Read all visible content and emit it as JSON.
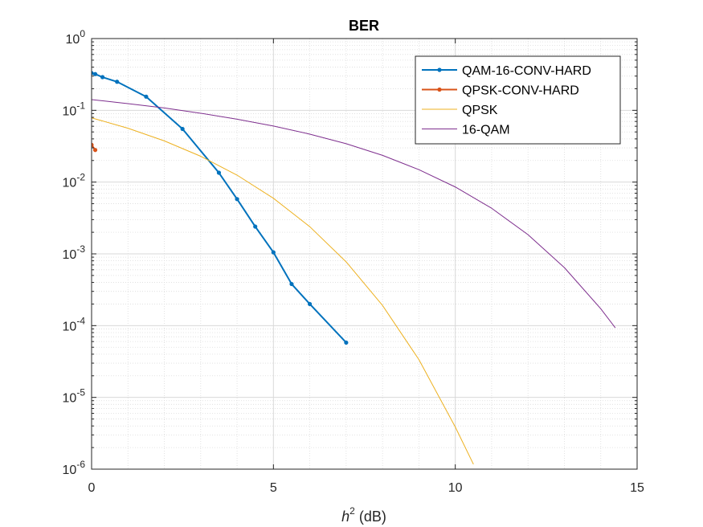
{
  "chart_data": {
    "type": "line",
    "title": "BER",
    "xlabel": {
      "base": "h",
      "sup": "2",
      "rest": " (dB)"
    },
    "ylabel": "",
    "xlim": [
      0,
      15
    ],
    "ylim": [
      1e-06,
      1
    ],
    "yscale": "log",
    "grid": true,
    "minor_grid": true,
    "legend_position": "top-right",
    "x_ticks": [
      "0",
      "5",
      "10",
      "15"
    ],
    "y_ticks": [
      {
        "base": "10",
        "exp": "0"
      },
      {
        "base": "10",
        "exp": "-1"
      },
      {
        "base": "10",
        "exp": "-2"
      },
      {
        "base": "10",
        "exp": "-3"
      },
      {
        "base": "10",
        "exp": "-4"
      },
      {
        "base": "10",
        "exp": "-5"
      },
      {
        "base": "10",
        "exp": "-6"
      }
    ],
    "series": [
      {
        "name": "QAM-16-CONV-HARD",
        "color": "#0072BD",
        "markers": true,
        "x": [
          0,
          0.1,
          0.3,
          0.7,
          1.5,
          2.5,
          3.5,
          4,
          4.5,
          5,
          5.5,
          6,
          7
        ],
        "y": [
          0.33,
          0.32,
          0.29,
          0.25,
          0.155,
          0.055,
          0.0135,
          0.0058,
          0.0024,
          0.00105,
          0.00038,
          0.0002,
          5.8e-05
        ]
      },
      {
        "name": "QPSK-CONV-HARD",
        "color": "#D95319",
        "markers": true,
        "x": [
          0,
          0.1
        ],
        "y": [
          0.033,
          0.028
        ]
      },
      {
        "name": "QPSK",
        "color": "#EDB120",
        "markers": false,
        "x": [
          0,
          1,
          2,
          3,
          4,
          5,
          6,
          7,
          8,
          9,
          10,
          10.5
        ],
        "y": [
          0.0786,
          0.0563,
          0.0375,
          0.0229,
          0.0125,
          0.00595,
          0.00239,
          0.000773,
          0.000191,
          3.36e-05,
          3.87e-06,
          1.17e-06
        ]
      },
      {
        "name": "16-QAM",
        "color": "#7E2F8E",
        "markers": false,
        "x": [
          0,
          1,
          2,
          3,
          4,
          5,
          6,
          7,
          8,
          9,
          10,
          11,
          12,
          13,
          14,
          14.4
        ],
        "y": [
          0.141,
          0.124,
          0.108,
          0.0911,
          0.0753,
          0.0604,
          0.0466,
          0.0343,
          0.0236,
          0.0149,
          0.00855,
          0.00432,
          0.00185,
          0.000643,
          0.000172,
          9.32e-05
        ]
      }
    ]
  }
}
